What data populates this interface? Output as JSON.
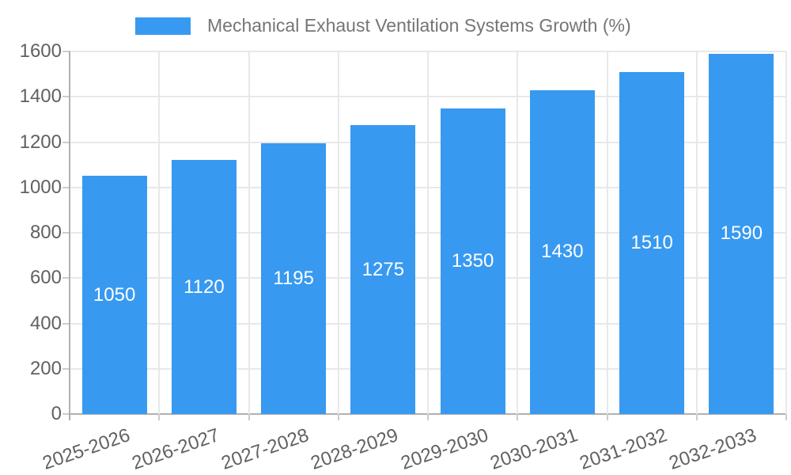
{
  "chart_data": {
    "type": "bar",
    "title": "Mechanical Exhaust Ventilation Systems Growth (%)",
    "legend": {
      "position": "top",
      "label": "Mechanical Exhaust Ventilation Systems Growth (%)"
    },
    "categories": [
      "2025-2026",
      "2026-2027",
      "2027-2028",
      "2028-2029",
      "2029-2030",
      "2030-2031",
      "2031-2032",
      "2032-2033"
    ],
    "values": [
      1050,
      1120,
      1195,
      1275,
      1350,
      1430,
      1510,
      1590
    ],
    "data_labels": [
      "1050",
      "1120",
      "1195",
      "1275",
      "1350",
      "1430",
      "1510",
      "1590"
    ],
    "xlabel": "",
    "ylabel": "",
    "ylim": [
      0,
      1600
    ],
    "yticks": [
      0,
      200,
      400,
      600,
      800,
      1000,
      1200,
      1400,
      1600
    ],
    "grid": "horizontal and vertical category boundaries",
    "x_label_rotation_deg": -19,
    "colors": {
      "bar": "#3899f0",
      "data_label": "#ffffff",
      "axis_text": "#616161",
      "legend_text": "#757575",
      "gridline": "#e8e8e8",
      "axis_line": "#b0b0b0",
      "tick_mark": "#cccccc",
      "background": "#ffffff"
    }
  }
}
